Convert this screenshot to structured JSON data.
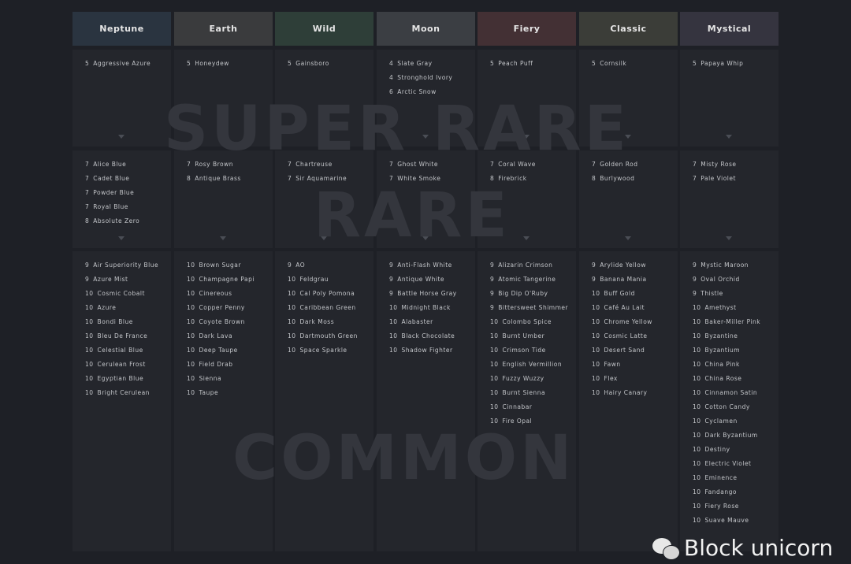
{
  "watermarks": {
    "super_rare": "SUPER RARE",
    "rare": "RARE",
    "common": "COMMON"
  },
  "brand": "Block unicorn",
  "columns": [
    {
      "title": "Neptune",
      "color": "#2a3440",
      "super_rare": [
        [
          "5",
          "Aggressive Azure"
        ]
      ],
      "rare": [
        [
          "7",
          "Alice Blue"
        ],
        [
          "7",
          "Cadet Blue"
        ],
        [
          "7",
          "Powder Blue"
        ],
        [
          "7",
          "Royal Blue"
        ],
        [
          "8",
          "Absolute Zero"
        ]
      ],
      "common": [
        [
          "9",
          "Air Superiority Blue"
        ],
        [
          "9",
          "Azure Mist"
        ],
        [
          "10",
          "Cosmic Cobalt"
        ],
        [
          "10",
          "Azure"
        ],
        [
          "10",
          "Bondi Blue"
        ],
        [
          "10",
          "Bleu De France"
        ],
        [
          "10",
          "Celestial Blue"
        ],
        [
          "10",
          "Cerulean Frost"
        ],
        [
          "10",
          "Egyptian Blue"
        ],
        [
          "10",
          "Bright Cerulean"
        ]
      ]
    },
    {
      "title": "Earth",
      "color": "#3a3b3d",
      "super_rare": [
        [
          "5",
          "Honeydew"
        ]
      ],
      "rare": [
        [
          "7",
          "Rosy Brown"
        ],
        [
          "8",
          "Antique Brass"
        ]
      ],
      "common": [
        [
          "10",
          "Brown Sugar"
        ],
        [
          "10",
          "Champagne Papi"
        ],
        [
          "10",
          "Cinereous"
        ],
        [
          "10",
          "Copper Penny"
        ],
        [
          "10",
          "Coyote Brown"
        ],
        [
          "10",
          "Dark Lava"
        ],
        [
          "10",
          "Deep Taupe"
        ],
        [
          "10",
          "Field Drab"
        ],
        [
          "10",
          "Sienna"
        ],
        [
          "10",
          "Taupe"
        ]
      ]
    },
    {
      "title": "Wild",
      "color": "#2e3e38",
      "super_rare": [
        [
          "5",
          "Gainsboro"
        ]
      ],
      "rare": [
        [
          "7",
          "Chartreuse"
        ],
        [
          "7",
          "Sir Aquamarine"
        ]
      ],
      "common": [
        [
          "9",
          "AO"
        ],
        [
          "10",
          "Feldgrau"
        ],
        [
          "10",
          "Cal Poly Pomona"
        ],
        [
          "10",
          "Caribbean Green"
        ],
        [
          "10",
          "Dark Moss"
        ],
        [
          "10",
          "Dartmouth Green"
        ],
        [
          "10",
          "Space Sparkle"
        ]
      ]
    },
    {
      "title": "Moon",
      "color": "#3b3e43",
      "super_rare": [
        [
          "4",
          "Slate Gray"
        ],
        [
          "4",
          "Stronghold Ivory"
        ],
        [
          "6",
          "Arctic Snow"
        ]
      ],
      "rare": [
        [
          "7",
          "Ghost White"
        ],
        [
          "7",
          "White Smoke"
        ]
      ],
      "common": [
        [
          "9",
          "Anti-Flash White"
        ],
        [
          "9",
          "Antique White"
        ],
        [
          "9",
          "Battle Horse Gray"
        ],
        [
          "10",
          "Midnight Black"
        ],
        [
          "10",
          "Alabaster"
        ],
        [
          "10",
          "Black Chocolate"
        ],
        [
          "10",
          "Shadow Fighter"
        ]
      ]
    },
    {
      "title": "Fiery",
      "color": "#433034",
      "super_rare": [
        [
          "5",
          "Peach Puff"
        ]
      ],
      "rare": [
        [
          "7",
          "Coral Wave"
        ],
        [
          "8",
          "Firebrick"
        ]
      ],
      "common": [
        [
          "9",
          "Alizarin Crimson"
        ],
        [
          "9",
          "Atomic Tangerine"
        ],
        [
          "9",
          "Big Dip O'Ruby"
        ],
        [
          "9",
          "Bittersweet Shimmer"
        ],
        [
          "10",
          "Colombo Spice"
        ],
        [
          "10",
          "Burnt Umber"
        ],
        [
          "10",
          "Crimson Tide"
        ],
        [
          "10",
          "English Vermillion"
        ],
        [
          "10",
          "Fuzzy Wuzzy"
        ],
        [
          "10",
          "Burnt Sienna"
        ],
        [
          "10",
          "Cinnabar"
        ],
        [
          "10",
          "Fire Opal"
        ]
      ]
    },
    {
      "title": "Classic",
      "color": "#3b3d38",
      "super_rare": [
        [
          "5",
          "Cornsilk"
        ]
      ],
      "rare": [
        [
          "7",
          "Golden Rod"
        ],
        [
          "8",
          "Burlywood"
        ]
      ],
      "common": [
        [
          "9",
          "Arylide Yellow"
        ],
        [
          "9",
          "Banana Mania"
        ],
        [
          "10",
          "Buff Gold"
        ],
        [
          "10",
          "Café Au Lait"
        ],
        [
          "10",
          "Chrome Yellow"
        ],
        [
          "10",
          "Cosmic Latte"
        ],
        [
          "10",
          "Desert Sand"
        ],
        [
          "10",
          "Fawn"
        ],
        [
          "10",
          "Flex"
        ],
        [
          "10",
          "Hairy Canary"
        ]
      ]
    },
    {
      "title": "Mystical",
      "color": "#35343f",
      "super_rare": [
        [
          "5",
          "Papaya Whip"
        ]
      ],
      "rare": [
        [
          "7",
          "Misty Rose"
        ],
        [
          "7",
          "Pale Violet"
        ]
      ],
      "common": [
        [
          "9",
          "Mystic Maroon"
        ],
        [
          "9",
          "Oval Orchid"
        ],
        [
          "9",
          "Thistle"
        ],
        [
          "10",
          "Amethyst"
        ],
        [
          "10",
          "Baker-Miller Pink"
        ],
        [
          "10",
          "Byzantine"
        ],
        [
          "10",
          "Byzantium"
        ],
        [
          "10",
          "China Pink"
        ],
        [
          "10",
          "China Rose"
        ],
        [
          "10",
          "Cinnamon Satin"
        ],
        [
          "10",
          "Cotton Candy"
        ],
        [
          "10",
          "Cyclamen"
        ],
        [
          "10",
          "Dark Byzantium"
        ],
        [
          "10",
          "Destiny"
        ],
        [
          "10",
          "Electric Violet"
        ],
        [
          "10",
          "Eminence"
        ],
        [
          "10",
          "Fandango"
        ],
        [
          "10",
          "Fiery Rose"
        ],
        [
          "10",
          "Suave Mauve"
        ]
      ]
    }
  ]
}
